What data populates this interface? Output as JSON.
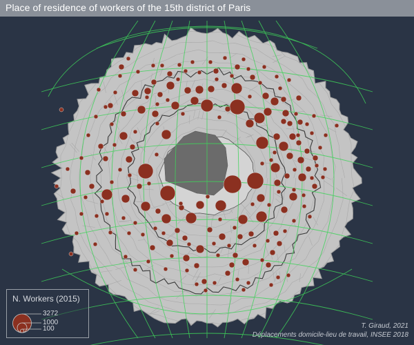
{
  "title": "Place of residence of workers of the 15th district of Paris",
  "legend": {
    "title": "N. Workers (2015)",
    "values": [
      "3272",
      "1000",
      "100"
    ]
  },
  "credits": {
    "author": "T. Giraud, 2021",
    "source": "Déplacements domicile-lieu de travail, INSEE 2018"
  },
  "colors": {
    "background": "#2a3445",
    "title_bar": "#8a9099",
    "land": "#c4c4c4",
    "paris": "#d2d2d2",
    "district_15": "#6b6b6b",
    "bubble_fill": "#8b3020",
    "graticule": "#3fd35a",
    "outline": "#333333"
  }
}
